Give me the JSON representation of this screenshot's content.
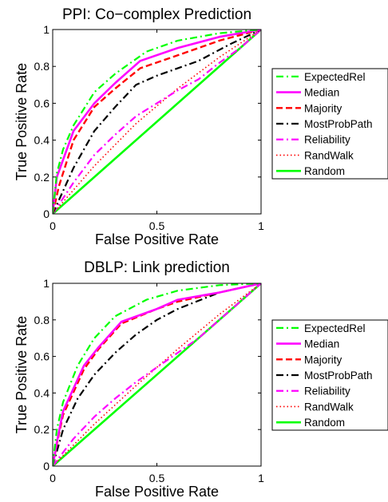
{
  "chart_data": [
    {
      "type": "line",
      "title": "PPI: Co−complex Prediction",
      "xlabel": "False Positive Rate",
      "ylabel": "True Positive Rate",
      "xlim": [
        0,
        1
      ],
      "ylim": [
        0,
        1
      ],
      "xticks": [
        "0",
        "0.5",
        "1"
      ],
      "yticks": [
        "0",
        "0.2",
        "0.4",
        "0.6",
        "0.8",
        "1"
      ],
      "grid": false,
      "legend_position": "right",
      "series": [
        {
          "name": "ExpectedRel",
          "color": "#00ff00",
          "style": "dashdot",
          "x": [
            0,
            0.02,
            0.05,
            0.1,
            0.2,
            0.3,
            0.45,
            0.6,
            0.8,
            1.0
          ],
          "y": [
            0,
            0.22,
            0.35,
            0.48,
            0.66,
            0.76,
            0.88,
            0.94,
            0.98,
            1.0
          ]
        },
        {
          "name": "Median",
          "color": "#ff00ff",
          "style": "solid",
          "x": [
            0,
            0.02,
            0.1,
            0.2,
            0.3,
            0.42,
            0.6,
            0.8,
            1.0
          ],
          "y": [
            0,
            0.2,
            0.45,
            0.6,
            0.71,
            0.83,
            0.9,
            0.96,
            1.0
          ]
        },
        {
          "name": "Majority",
          "color": "#ff0000",
          "style": "dashed",
          "x": [
            0,
            0.03,
            0.1,
            0.2,
            0.3,
            0.42,
            0.6,
            0.8,
            1.0
          ],
          "y": [
            0,
            0.15,
            0.4,
            0.58,
            0.68,
            0.79,
            0.86,
            0.94,
            1.0
          ]
        },
        {
          "name": "MostProbPath",
          "color": "#000000",
          "style": "dashdot",
          "x": [
            0,
            0.1,
            0.2,
            0.3,
            0.4,
            0.5,
            0.7,
            0.85,
            1.0
          ],
          "y": [
            0,
            0.25,
            0.45,
            0.58,
            0.7,
            0.75,
            0.83,
            0.92,
            1.0
          ]
        },
        {
          "name": "Reliability",
          "color": "#ff00ff",
          "style": "dashdot",
          "x": [
            0,
            0.1,
            0.2,
            0.3,
            0.4,
            0.5,
            0.6,
            0.7,
            0.8,
            0.9,
            1.0
          ],
          "y": [
            0,
            0.17,
            0.32,
            0.43,
            0.53,
            0.6,
            0.67,
            0.73,
            0.82,
            0.9,
            1.0
          ]
        },
        {
          "name": "RandWalk",
          "color": "#ff0000",
          "style": "dotted",
          "x": [
            0,
            0.2,
            0.4,
            0.6,
            0.8,
            1.0
          ],
          "y": [
            0,
            0.26,
            0.49,
            0.68,
            0.85,
            1.0
          ]
        },
        {
          "name": "Random",
          "color": "#00ff00",
          "style": "solid",
          "x": [
            0,
            1.0
          ],
          "y": [
            0,
            1.0
          ]
        }
      ]
    },
    {
      "type": "line",
      "title": "DBLP: Link prediction",
      "xlabel": "False Positive Rate",
      "ylabel": "True Positive Rate",
      "xlim": [
        0,
        1
      ],
      "ylim": [
        0,
        1
      ],
      "xticks": [
        "0",
        "0.5",
        "1"
      ],
      "yticks": [
        "0",
        "0.2",
        "0.4",
        "0.6",
        "0.8",
        "1"
      ],
      "grid": false,
      "legend_position": "right",
      "series": [
        {
          "name": "ExpectedRel",
          "color": "#00ff00",
          "style": "dashdot",
          "x": [
            0,
            0.02,
            0.05,
            0.12,
            0.2,
            0.3,
            0.45,
            0.6,
            0.8,
            1.0
          ],
          "y": [
            0,
            0.2,
            0.35,
            0.55,
            0.7,
            0.82,
            0.91,
            0.96,
            0.99,
            1.0
          ]
        },
        {
          "name": "Median",
          "color": "#ff00ff",
          "style": "solid",
          "x": [
            0,
            0.02,
            0.05,
            0.15,
            0.22,
            0.33,
            0.5,
            0.6,
            0.8,
            1.0
          ],
          "y": [
            0,
            0.13,
            0.3,
            0.55,
            0.65,
            0.79,
            0.86,
            0.91,
            0.95,
            1.0
          ]
        },
        {
          "name": "Majority",
          "color": "#ff0000",
          "style": "dashed",
          "x": [
            0,
            0.02,
            0.05,
            0.15,
            0.22,
            0.33,
            0.5,
            0.6,
            0.8,
            1.0
          ],
          "y": [
            0,
            0.12,
            0.28,
            0.53,
            0.64,
            0.78,
            0.86,
            0.9,
            0.95,
            1.0
          ]
        },
        {
          "name": "MostProbPath",
          "color": "#000000",
          "style": "dashdot",
          "x": [
            0,
            0.05,
            0.12,
            0.2,
            0.3,
            0.4,
            0.5,
            0.6,
            0.8,
            1.0
          ],
          "y": [
            0,
            0.2,
            0.37,
            0.5,
            0.62,
            0.72,
            0.8,
            0.86,
            0.95,
            1.0
          ]
        },
        {
          "name": "Reliability",
          "color": "#ff00ff",
          "style": "dashdot",
          "x": [
            0,
            0.1,
            0.2,
            0.3,
            0.4,
            0.5,
            0.6,
            0.7,
            0.8,
            0.9,
            1.0
          ],
          "y": [
            0,
            0.15,
            0.27,
            0.37,
            0.46,
            0.54,
            0.62,
            0.7,
            0.8,
            0.9,
            1.0
          ]
        },
        {
          "name": "RandWalk",
          "color": "#ff0000",
          "style": "dotted",
          "x": [
            0,
            0.2,
            0.4,
            0.6,
            0.8,
            1.0
          ],
          "y": [
            0,
            0.23,
            0.44,
            0.64,
            0.83,
            1.0
          ]
        },
        {
          "name": "Random",
          "color": "#00ff00",
          "style": "solid",
          "x": [
            0,
            1.0
          ],
          "y": [
            0,
            1.0
          ]
        }
      ]
    }
  ]
}
